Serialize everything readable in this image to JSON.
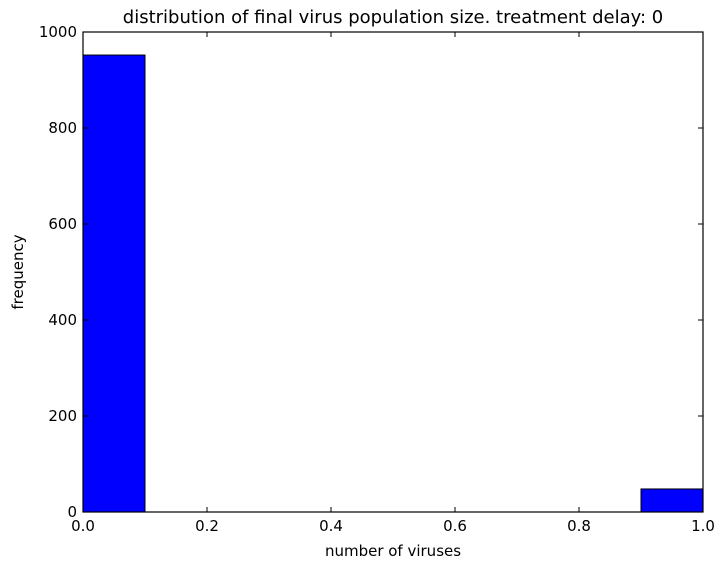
{
  "chart_data": {
    "type": "bar",
    "subtype": "histogram",
    "title": "distribution of final virus population size. treatment delay: 0",
    "xlabel": "number of viruses",
    "ylabel": "frequency",
    "xlim": [
      0,
      1
    ],
    "ylim": [
      0,
      1000
    ],
    "xticks": [
      "0.0",
      "0.2",
      "0.4",
      "0.6",
      "0.8",
      "1.0"
    ],
    "yticks": [
      "0",
      "200",
      "400",
      "600",
      "800",
      "1000"
    ],
    "bins": [
      {
        "x0": 0.0,
        "x1": 0.1,
        "value": 952
      },
      {
        "x0": 0.1,
        "x1": 0.2,
        "value": 0
      },
      {
        "x0": 0.2,
        "x1": 0.3,
        "value": 0
      },
      {
        "x0": 0.3,
        "x1": 0.4,
        "value": 0
      },
      {
        "x0": 0.4,
        "x1": 0.5,
        "value": 0
      },
      {
        "x0": 0.5,
        "x1": 0.6,
        "value": 0
      },
      {
        "x0": 0.6,
        "x1": 0.7,
        "value": 0
      },
      {
        "x0": 0.7,
        "x1": 0.8,
        "value": 0
      },
      {
        "x0": 0.8,
        "x1": 0.9,
        "value": 0
      },
      {
        "x0": 0.9,
        "x1": 1.0,
        "value": 48
      }
    ],
    "bar_color": "#0000ff",
    "edge_color": "#000000",
    "grid": false,
    "legend": "none"
  }
}
